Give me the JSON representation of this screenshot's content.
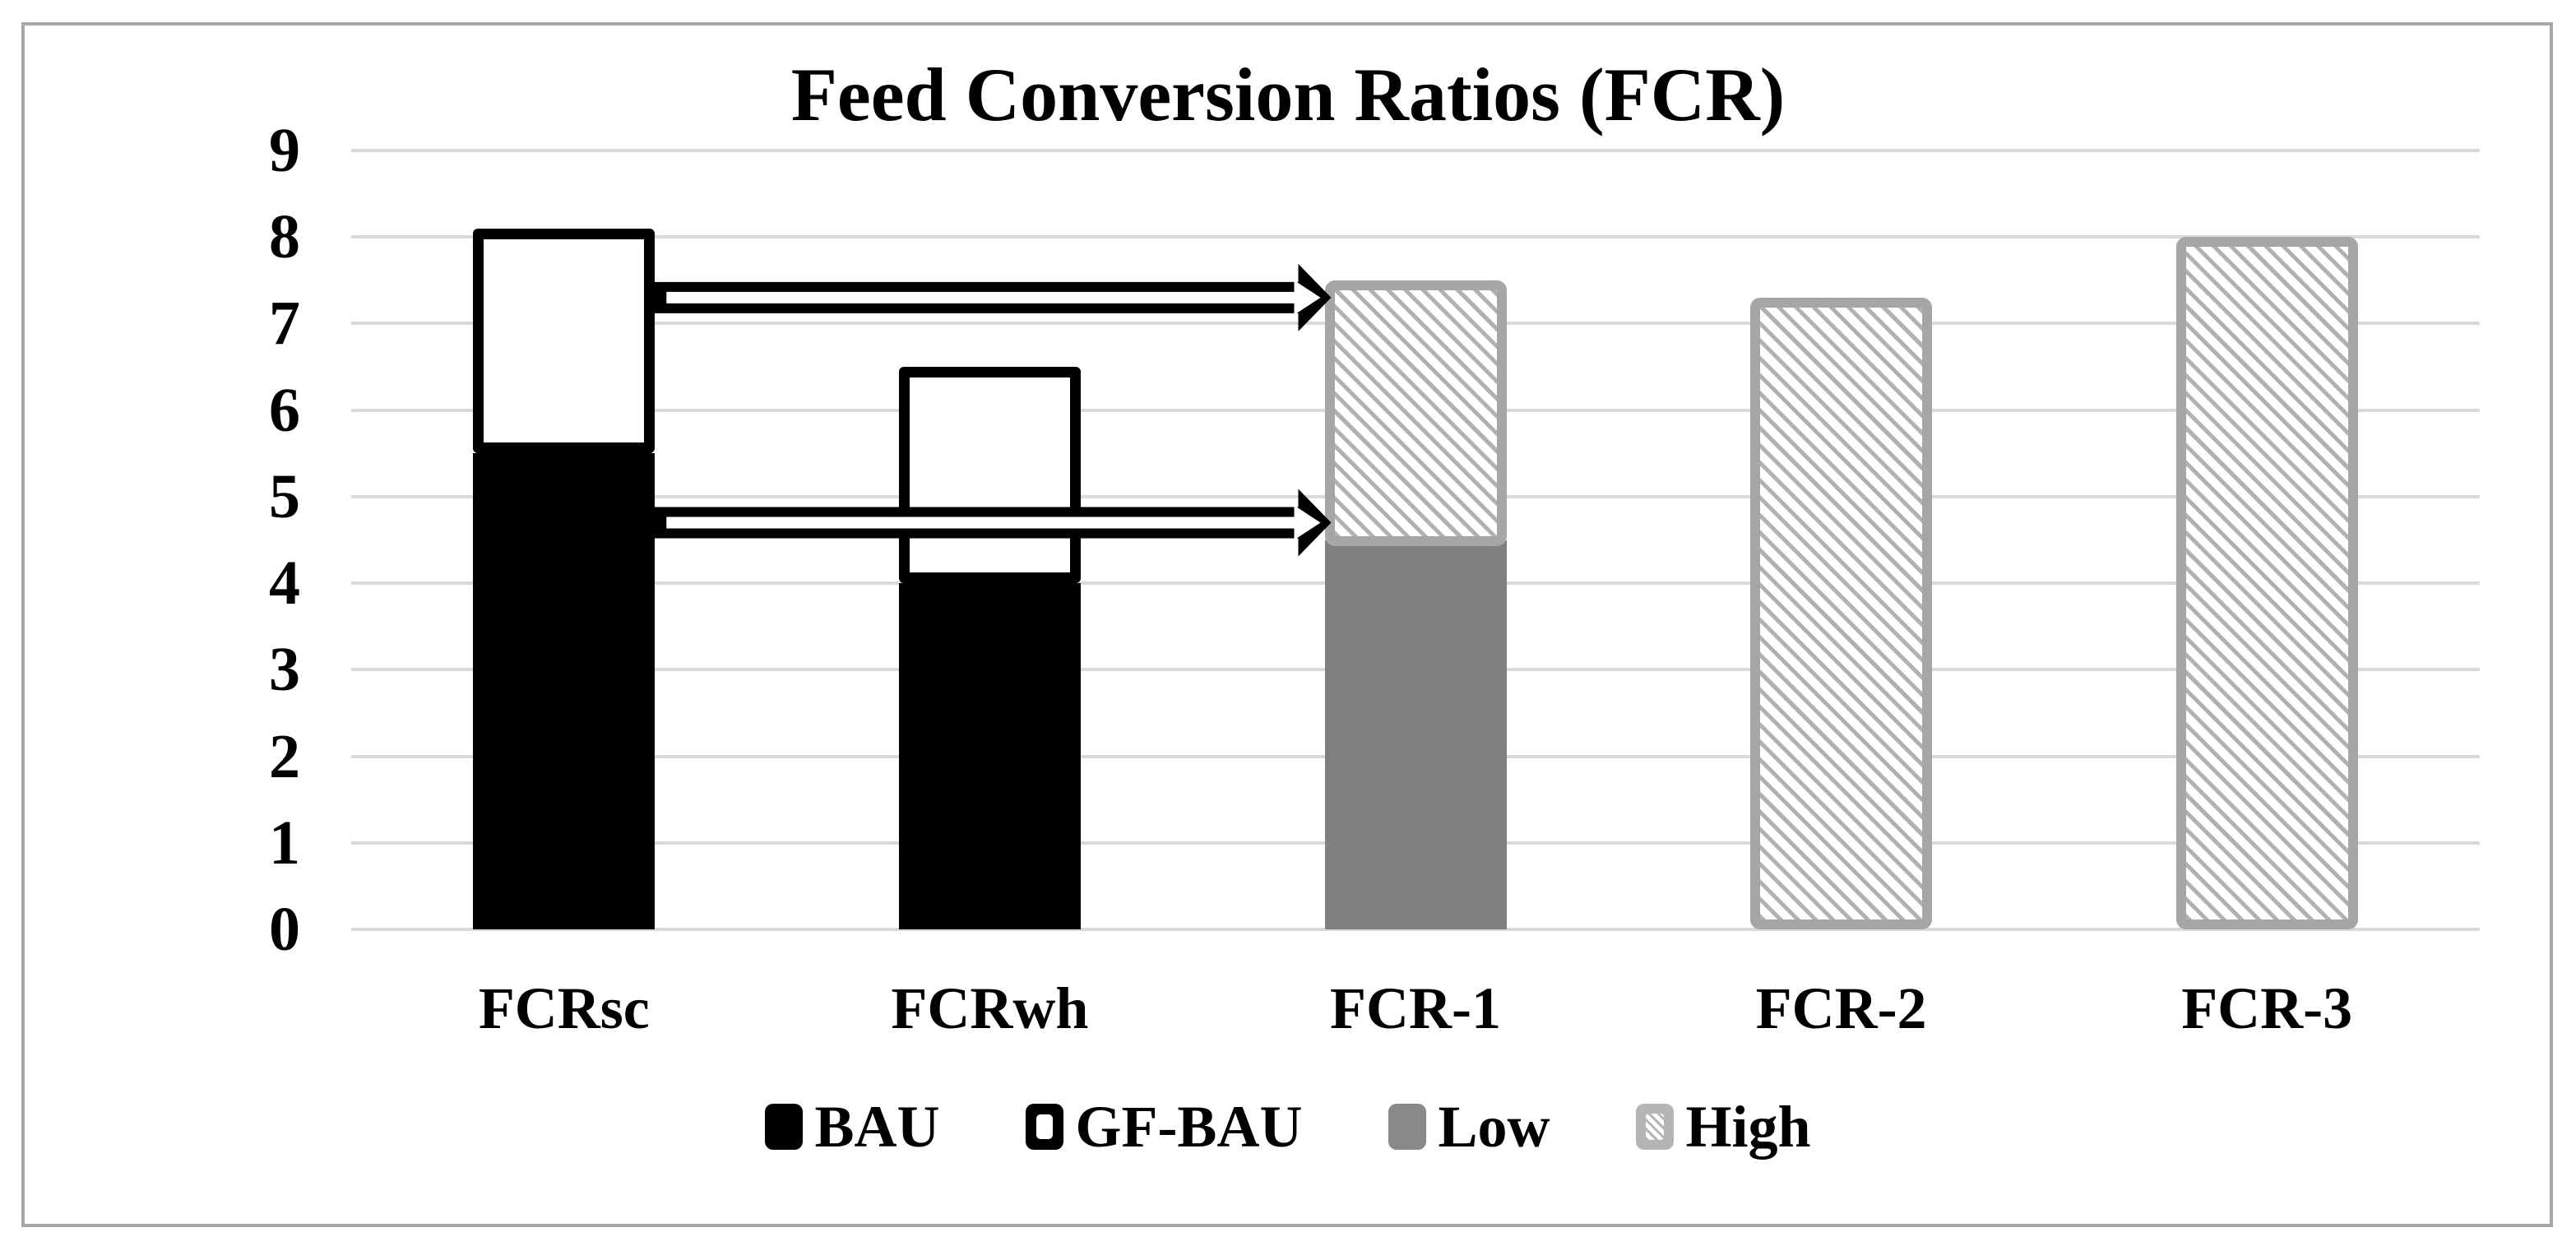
{
  "frame": {
    "border_color": "#a8a8a8"
  },
  "chart_data": {
    "type": "bar",
    "stacked": true,
    "title": "Feed Conversion Ratios (FCR)",
    "categories": [
      "FCRsc",
      "FCRwh",
      "FCR-1",
      "FCR-2",
      "FCR-3"
    ],
    "series": [
      {
        "name": "BAU",
        "style": "bau",
        "values": [
          5.5,
          4.0,
          0,
          0,
          0
        ]
      },
      {
        "name": "GF-BAU",
        "style": "gfbau",
        "values": [
          2.6,
          2.5,
          0,
          0,
          0
        ]
      },
      {
        "name": "Low",
        "style": "low",
        "values": [
          0,
          0,
          4.5,
          0,
          0
        ]
      },
      {
        "name": "High",
        "style": "high",
        "values": [
          0,
          0,
          3.0,
          7.3,
          8.0
        ]
      }
    ],
    "stack_totals": [
      8.1,
      6.5,
      7.5,
      7.3,
      8.0
    ],
    "xlabel": "",
    "ylabel": "",
    "ylim": [
      0,
      9
    ],
    "y_ticks": [
      "9",
      "8",
      "7",
      "6",
      "5",
      "4",
      "3",
      "2",
      "1",
      "0"
    ],
    "grid": true,
    "legend_position": "bottom",
    "annotations": [
      {
        "type": "double-arrow",
        "from": "FCRsc",
        "to": "FCR-1",
        "at_value": 7.3
      },
      {
        "type": "double-arrow",
        "from": "FCRsc",
        "to": "FCR-1",
        "at_value": 4.7
      }
    ]
  },
  "legend": {
    "items": [
      {
        "label": "BAU"
      },
      {
        "label": "GF-BAU"
      },
      {
        "label": "Low"
      },
      {
        "label": "High"
      }
    ]
  },
  "colors": {
    "bau_fill": "#000000",
    "gfbau_fill": "#ffffff",
    "gfbau_border": "#000000",
    "low_fill": "#7f7f7f",
    "high_hatch": "#b1b1b1",
    "high_border": "#a6a6a6",
    "gridline": "#d9d9d9",
    "frame_border": "#a8a8a8",
    "arrow": "#000000"
  }
}
